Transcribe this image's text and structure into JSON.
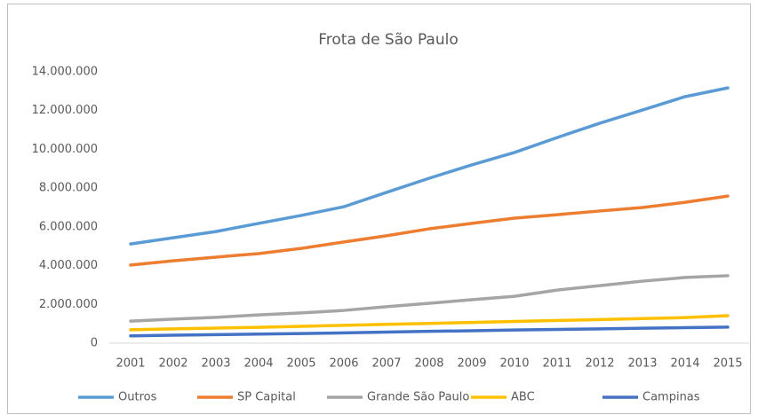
{
  "chart_data": {
    "type": "line",
    "title": "Frota de São Paulo",
    "categories": [
      "2001",
      "2002",
      "2003",
      "2004",
      "2005",
      "2006",
      "2007",
      "2008",
      "2009",
      "2010",
      "2011",
      "2012",
      "2013",
      "2014",
      "2015"
    ],
    "series": [
      {
        "name": "Outros",
        "color": "#5b9bd5",
        "values": [
          5120000,
          5440000,
          5760000,
          6180000,
          6590000,
          7040000,
          7780000,
          8510000,
          9200000,
          9840000,
          10610000,
          11350000,
          12030000,
          12720000,
          13170000
        ]
      },
      {
        "name": "SP Capital",
        "color": "#ed7d31",
        "values": [
          4030000,
          4250000,
          4440000,
          4620000,
          4890000,
          5220000,
          5540000,
          5900000,
          6180000,
          6450000,
          6630000,
          6820000,
          7000000,
          7270000,
          7590000
        ]
      },
      {
        "name": "Grande São Paulo",
        "color": "#a5a5a5",
        "values": [
          1140000,
          1240000,
          1330000,
          1460000,
          1560000,
          1690000,
          1880000,
          2060000,
          2240000,
          2420000,
          2740000,
          2970000,
          3200000,
          3390000,
          3480000
        ]
      },
      {
        "name": "ABC",
        "color": "#ffc000",
        "values": [
          690000,
          740000,
          780000,
          820000,
          870000,
          920000,
          970000,
          1020000,
          1070000,
          1120000,
          1170000,
          1220000,
          1270000,
          1320000,
          1420000
        ]
      },
      {
        "name": "Campinas",
        "color": "#4472c4",
        "values": [
          380000,
          410000,
          440000,
          470000,
          500000,
          530000,
          570000,
          610000,
          640000,
          680000,
          710000,
          740000,
          770000,
          800000,
          830000
        ]
      }
    ],
    "ylim": [
      0,
      14000000
    ],
    "yticks": [
      {
        "value": 0,
        "label": "0"
      },
      {
        "value": 2000000,
        "label": "2.000.000"
      },
      {
        "value": 4000000,
        "label": "4.000.000"
      },
      {
        "value": 6000000,
        "label": "6.000.000"
      },
      {
        "value": 8000000,
        "label": "8.000.000"
      },
      {
        "value": 10000000,
        "label": "10.000.000"
      },
      {
        "value": 12000000,
        "label": "12.000.000"
      },
      {
        "value": 14000000,
        "label": "14.000.000"
      }
    ],
    "grid": false,
    "legend": "bottom"
  }
}
